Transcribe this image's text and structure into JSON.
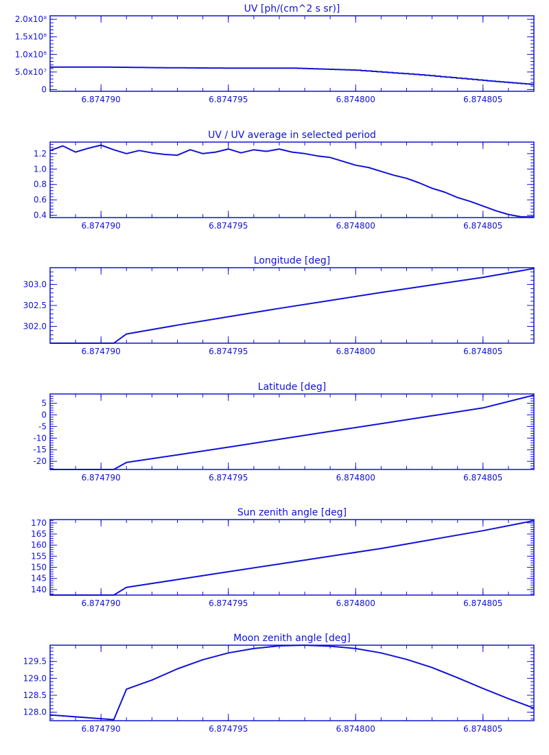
{
  "colors": {
    "line": "#1010d8",
    "text": "#1010d8",
    "background": "#ffffff"
  },
  "chart_data": [
    {
      "type": "line",
      "title": "UV [ph/(cm^2 s sr)]",
      "xlabel": "",
      "ylabel": "",
      "xlim": [
        6.874788,
        6.874807
      ],
      "ylim": [
        -5000000,
        210000000
      ],
      "xticks": [
        "6.874790",
        "6.874795",
        "6.874800",
        "6.874805"
      ],
      "xtick_values": [
        6.87479,
        6.874795,
        6.8748,
        6.874805
      ],
      "yticks": [
        "0",
        "5.0x10⁷",
        "1.0x10⁸",
        "1.5x10⁸",
        "2.0x10⁸"
      ],
      "ytick_values": [
        0,
        50000000,
        100000000,
        150000000,
        200000000
      ],
      "step": true,
      "x": [
        6.874788,
        6.87479,
        6.8747925,
        6.874795,
        6.8747975,
        6.8748,
        6.8748025,
        6.874805,
        6.874807
      ],
      "y": [
        64000000,
        64000000,
        62000000,
        61000000,
        61000000,
        55000000,
        42000000,
        26000000,
        14000000
      ]
    },
    {
      "type": "line",
      "title": "UV / UV average in selected period",
      "xlabel": "",
      "ylabel": "",
      "xlim": [
        6.874788,
        6.874807
      ],
      "ylim": [
        0.37,
        1.35
      ],
      "xticks": [
        "6.874790",
        "6.874795",
        "6.874800",
        "6.874805"
      ],
      "xtick_values": [
        6.87479,
        6.874795,
        6.8748,
        6.874805
      ],
      "yticks": [
        "0.4",
        "0.6",
        "0.8",
        "1.0",
        "1.2"
      ],
      "ytick_values": [
        0.4,
        0.6,
        0.8,
        1.0,
        1.2
      ],
      "x": [
        6.874788,
        6.8747885,
        6.874789,
        6.8747895,
        6.87479,
        6.8747905,
        6.874791,
        6.8747915,
        6.874792,
        6.8747925,
        6.874793,
        6.8747935,
        6.874794,
        6.8747945,
        6.874795,
        6.8747955,
        6.874796,
        6.8747965,
        6.874797,
        6.8747975,
        6.874798,
        6.8747985,
        6.874799,
        6.8747995,
        6.8748,
        6.8748005,
        6.874801,
        6.8748015,
        6.874802,
        6.8748025,
        6.874803,
        6.8748035,
        6.874804,
        6.8748045,
        6.874805,
        6.8748055,
        6.874806,
        6.8748065,
        6.874807
      ],
      "y": [
        1.24,
        1.3,
        1.22,
        1.27,
        1.31,
        1.25,
        1.2,
        1.24,
        1.21,
        1.19,
        1.18,
        1.25,
        1.2,
        1.22,
        1.26,
        1.21,
        1.25,
        1.23,
        1.26,
        1.22,
        1.2,
        1.17,
        1.15,
        1.1,
        1.05,
        1.02,
        0.97,
        0.92,
        0.88,
        0.82,
        0.75,
        0.7,
        0.63,
        0.58,
        0.52,
        0.46,
        0.41,
        0.38,
        0.38
      ]
    },
    {
      "type": "line",
      "title": "Longitude [deg]",
      "xlabel": "",
      "ylabel": "",
      "xlim": [
        6.874788,
        6.874807
      ],
      "ylim": [
        301.6,
        303.4
      ],
      "xticks": [
        "6.874790",
        "6.874795",
        "6.874800",
        "6.874805"
      ],
      "xtick_values": [
        6.87479,
        6.874795,
        6.8748,
        6.874805
      ],
      "yticks": [
        "302.0",
        "302.5",
        "303.0"
      ],
      "ytick_values": [
        302.0,
        302.5,
        303.0
      ],
      "x": [
        6.874788,
        6.8747895,
        6.8747905,
        6.874791,
        6.874793,
        6.874795,
        6.874797,
        6.874799,
        6.874801,
        6.874803,
        6.874805,
        6.874807
      ],
      "y": [
        301.6,
        301.6,
        301.6,
        301.82,
        302.03,
        302.23,
        302.43,
        302.62,
        302.81,
        302.99,
        303.17,
        303.38
      ]
    },
    {
      "type": "line",
      "title": "Latitude [deg]",
      "xlabel": "",
      "ylabel": "",
      "xlim": [
        6.874788,
        6.874807
      ],
      "ylim": [
        -23.5,
        9
      ],
      "xticks": [
        "6.874790",
        "6.874795",
        "6.874800",
        "6.874805"
      ],
      "xtick_values": [
        6.87479,
        6.874795,
        6.8748,
        6.874805
      ],
      "yticks": [
        "-20",
        "-15",
        "-10",
        "-5",
        "0",
        "5"
      ],
      "ytick_values": [
        -20,
        -15,
        -10,
        -5,
        0,
        5
      ],
      "x": [
        6.874788,
        6.8747895,
        6.8747905,
        6.874791,
        6.874793,
        6.874795,
        6.874797,
        6.874799,
        6.874801,
        6.874803,
        6.874805,
        6.874807
      ],
      "y": [
        -23.5,
        -23.5,
        -23.5,
        -20.5,
        -17.2,
        -13.9,
        -10.5,
        -7.1,
        -3.8,
        -0.4,
        3.0,
        8.5
      ]
    },
    {
      "type": "line",
      "title": "Sun zenith angle [deg]",
      "xlabel": "",
      "ylabel": "",
      "xlim": [
        6.874788,
        6.874807
      ],
      "ylim": [
        137.5,
        171.5
      ],
      "xticks": [
        "6.874790",
        "6.874795",
        "6.874800",
        "6.874805"
      ],
      "xtick_values": [
        6.87479,
        6.874795,
        6.8748,
        6.874805
      ],
      "yticks": [
        "140",
        "145",
        "150",
        "155",
        "160",
        "165",
        "170"
      ],
      "ytick_values": [
        140,
        145,
        150,
        155,
        160,
        165,
        170
      ],
      "x": [
        6.874788,
        6.8747895,
        6.8747905,
        6.874791,
        6.874793,
        6.874795,
        6.874797,
        6.874799,
        6.874801,
        6.874803,
        6.874805,
        6.874807
      ],
      "y": [
        137.5,
        137.5,
        137.5,
        141.0,
        144.5,
        148.0,
        151.5,
        155.0,
        158.5,
        162.5,
        166.5,
        171.0
      ]
    },
    {
      "type": "line",
      "title": "Moon zenith angle [deg]",
      "xlabel": "",
      "ylabel": "",
      "xlim": [
        6.874788,
        6.874807
      ],
      "ylim": [
        127.75,
        129.98
      ],
      "xticks": [
        "6.874790",
        "6.874795",
        "6.874800",
        "6.874805"
      ],
      "xtick_values": [
        6.87479,
        6.874795,
        6.8748,
        6.874805
      ],
      "yticks": [
        "128.0",
        "128.5",
        "129.0",
        "129.5"
      ],
      "ytick_values": [
        128.0,
        128.5,
        129.0,
        129.5
      ],
      "x": [
        6.874788,
        6.8747905,
        6.874791,
        6.874792,
        6.874793,
        6.874794,
        6.874795,
        6.874796,
        6.874797,
        6.874798,
        6.874799,
        6.8748,
        6.874801,
        6.874802,
        6.874803,
        6.874804,
        6.874805,
        6.874806,
        6.874807
      ],
      "y": [
        127.92,
        127.78,
        128.68,
        128.95,
        129.28,
        129.55,
        129.75,
        129.88,
        129.96,
        129.98,
        129.95,
        129.88,
        129.75,
        129.56,
        129.32,
        129.02,
        128.7,
        128.4,
        128.12
      ]
    }
  ]
}
